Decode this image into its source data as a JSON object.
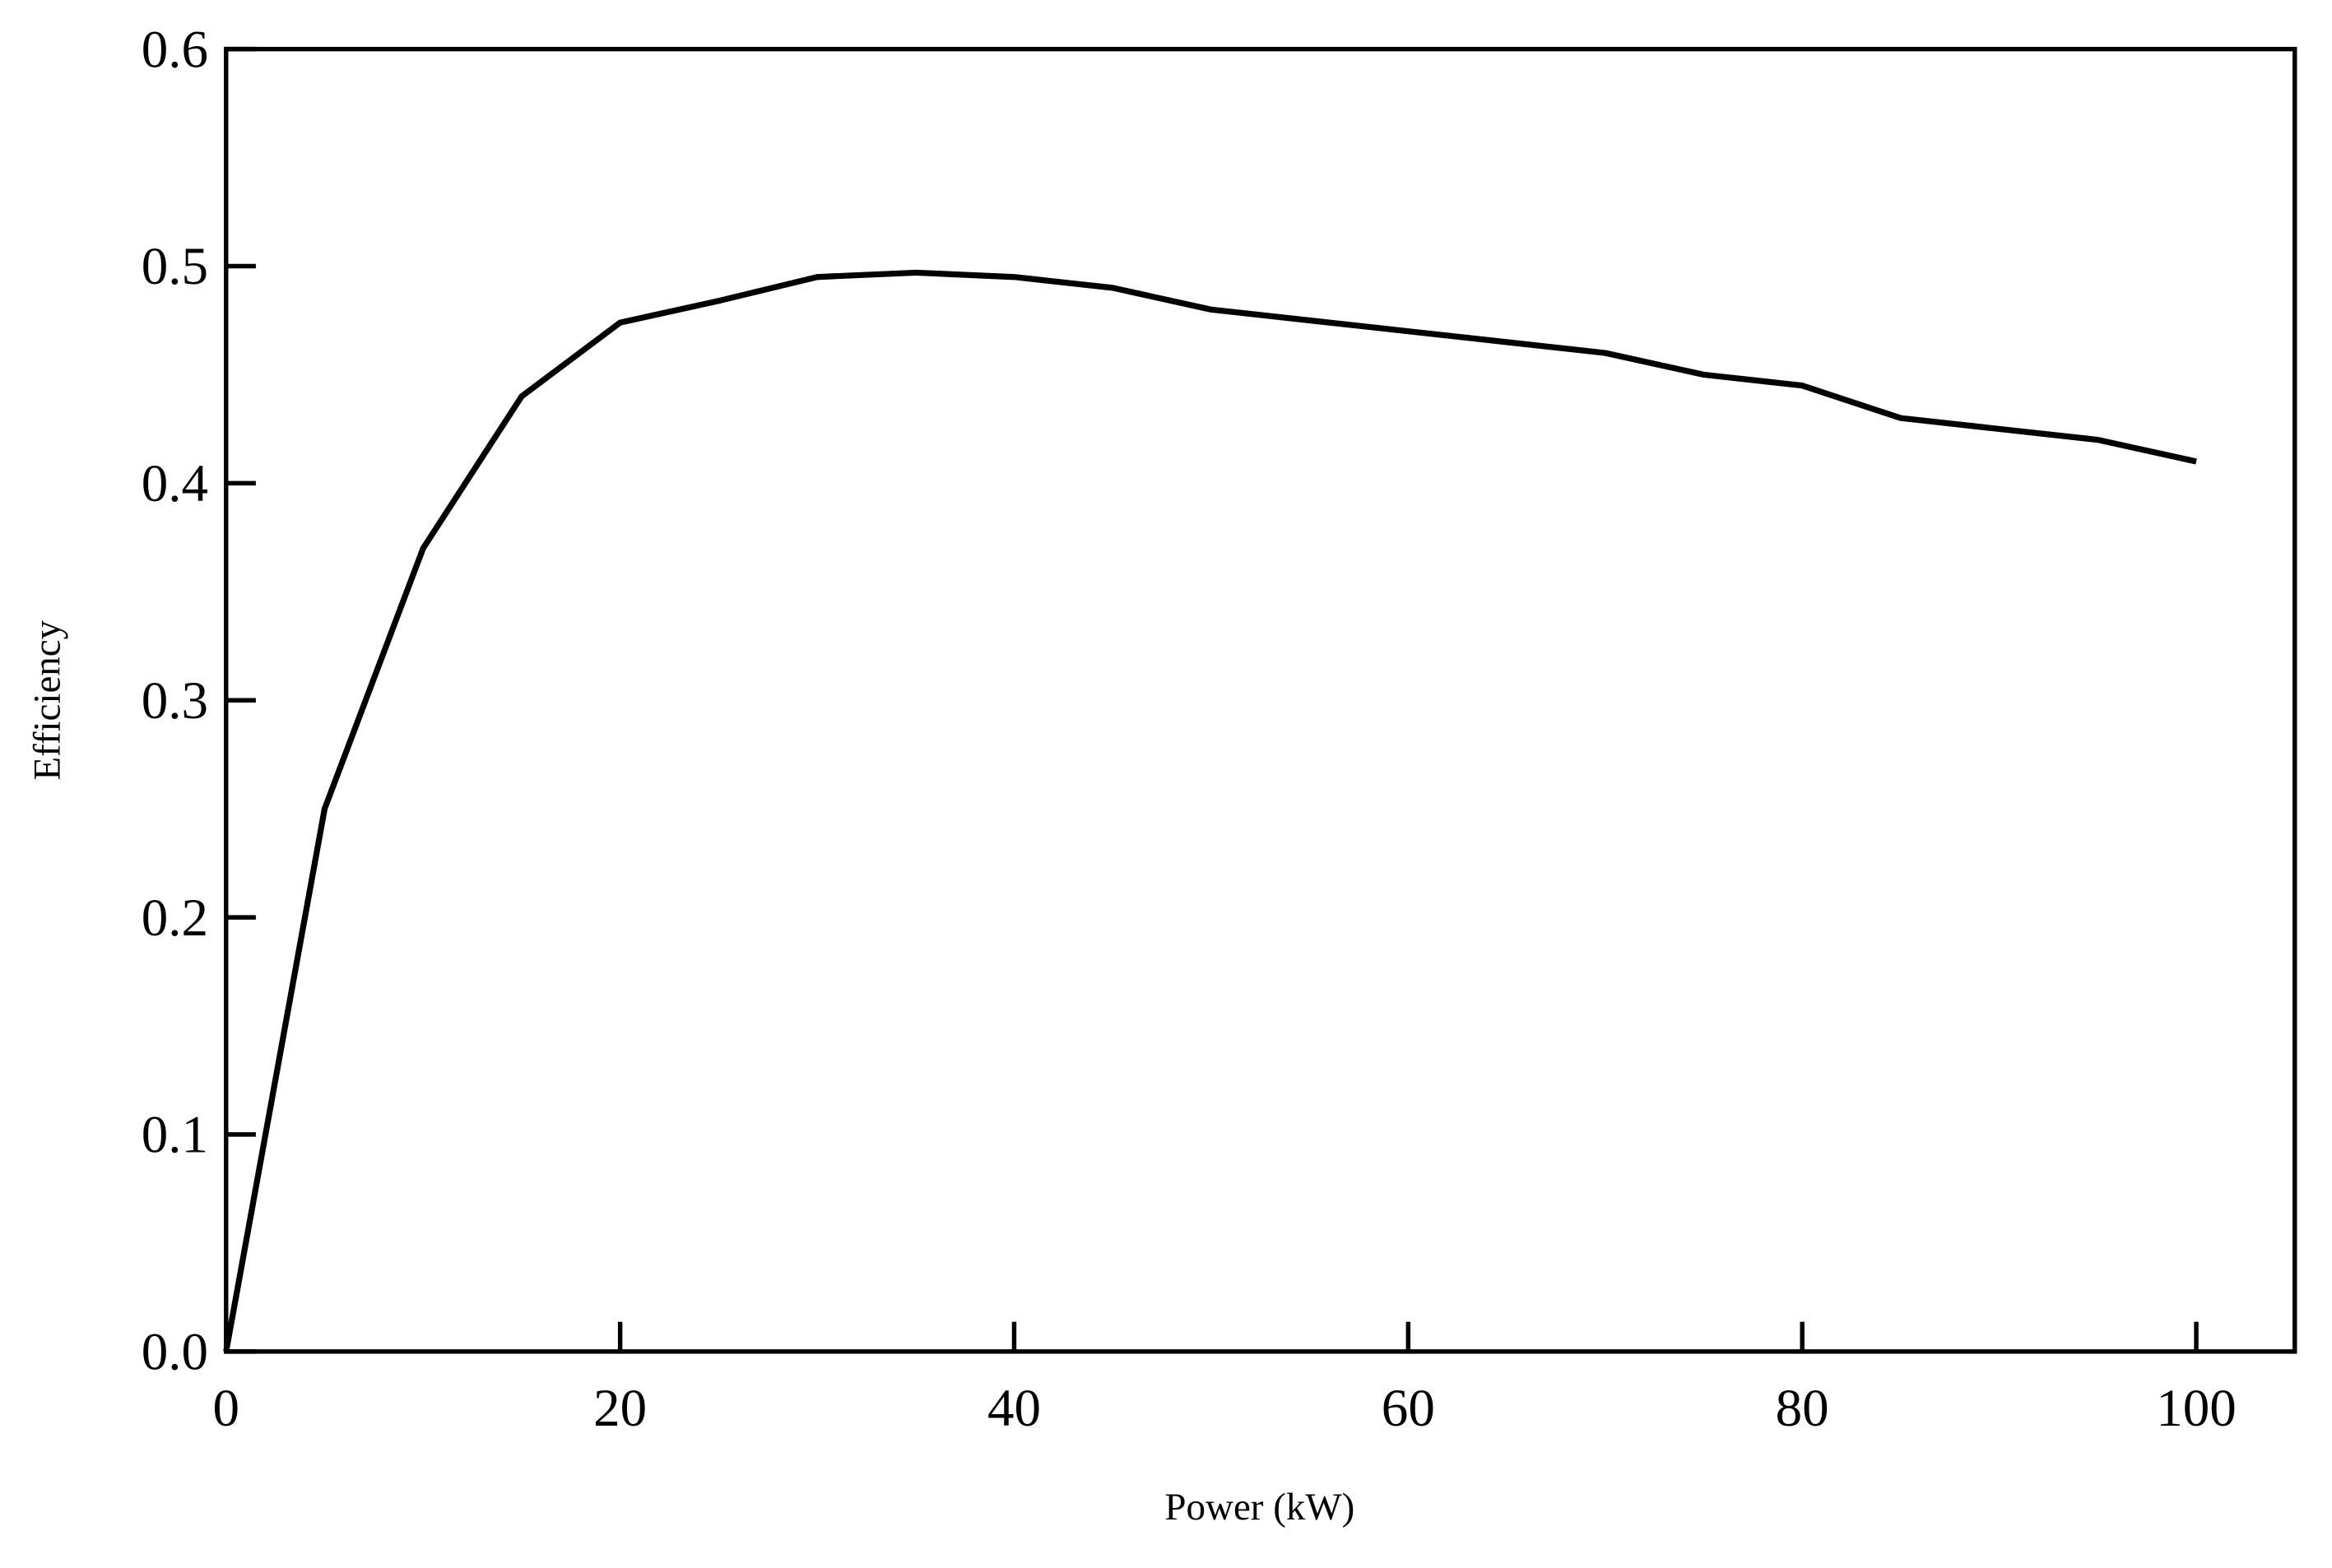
{
  "chart_data": {
    "type": "line",
    "x_label": "Power (kW)",
    "y_label": "Efficiency",
    "x": [
      0,
      5,
      10,
      15,
      20,
      25,
      30,
      35,
      40,
      45,
      50,
      55,
      60,
      65,
      70,
      75,
      80,
      85,
      90,
      95,
      100
    ],
    "series": [
      {
        "color": "#000000",
        "values": [
          0,
          0.25,
          0.37,
          0.44,
          0.474,
          0.484,
          0.495,
          0.497,
          0.495,
          0.49,
          0.48,
          0.475,
          0.47,
          0.465,
          0.46,
          0.45,
          0.445,
          0.43,
          0.425,
          0.42,
          0.41
        ]
      }
    ],
    "xlim": [
      0,
      105
    ],
    "xticks": [
      0,
      20,
      40,
      60,
      80,
      100
    ],
    "ylim": [
      0,
      0.6
    ],
    "yticks": [
      {
        "value": 0,
        "label": "0.0"
      },
      0.1,
      0.2,
      0.3,
      0.4,
      0.5,
      0.6
    ],
    "grid": false
  }
}
